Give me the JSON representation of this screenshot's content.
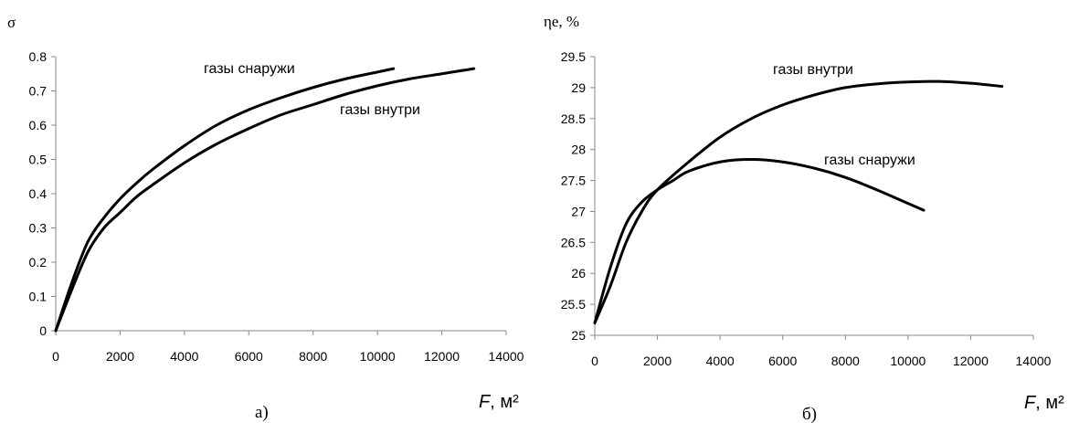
{
  "chart_data": [
    {
      "type": "line",
      "panel_label": "а)",
      "ylabel": "σ",
      "xlabel": "F, м²",
      "xlim": [
        0,
        14000
      ],
      "ylim": [
        0,
        0.8
      ],
      "x_ticks": [
        "0",
        "2000",
        "4000",
        "6000",
        "8000",
        "10000",
        "12000",
        "14000"
      ],
      "y_ticks": [
        "0",
        "0.1",
        "0.2",
        "0.3",
        "0.4",
        "0.5",
        "0.6",
        "0.7",
        "0.8"
      ],
      "grid": false,
      "series": [
        {
          "name": "газы снаружи",
          "x": [
            0,
            500,
            1000,
            1500,
            2000,
            2500,
            3000,
            4000,
            5000,
            6000,
            7000,
            8000,
            9000,
            10000,
            10500
          ],
          "y": [
            0,
            0.14,
            0.26,
            0.33,
            0.385,
            0.43,
            0.47,
            0.54,
            0.6,
            0.645,
            0.68,
            0.71,
            0.735,
            0.755,
            0.765
          ]
        },
        {
          "name": "газы внутри",
          "x": [
            0,
            500,
            1000,
            1500,
            2000,
            2500,
            3000,
            4000,
            5000,
            6000,
            7000,
            8000,
            9000,
            10000,
            11000,
            12000,
            13000
          ],
          "y": [
            0,
            0.12,
            0.23,
            0.3,
            0.345,
            0.39,
            0.425,
            0.49,
            0.545,
            0.59,
            0.63,
            0.66,
            0.69,
            0.715,
            0.735,
            0.75,
            0.765
          ]
        }
      ]
    },
    {
      "type": "line",
      "panel_label": "б)",
      "ylabel": "ηe, %",
      "xlabel": "F, м²",
      "xlim": [
        0,
        14000
      ],
      "ylim": [
        25,
        29.5
      ],
      "x_ticks": [
        "0",
        "2000",
        "4000",
        "6000",
        "8000",
        "10000",
        "12000",
        "14000"
      ],
      "y_ticks": [
        "25",
        "25.5",
        "26",
        "26.5",
        "27",
        "27.5",
        "28",
        "28.5",
        "29",
        "29.5"
      ],
      "grid": false,
      "series": [
        {
          "name": "газы внутри",
          "x": [
            0,
            500,
            1000,
            1500,
            2000,
            3000,
            4000,
            5000,
            6000,
            7000,
            8000,
            9000,
            10000,
            11000,
            12000,
            13000
          ],
          "y": [
            25.2,
            25.8,
            26.5,
            27.0,
            27.35,
            27.8,
            28.2,
            28.5,
            28.72,
            28.88,
            29.0,
            29.06,
            29.09,
            29.1,
            29.07,
            29.02
          ]
        },
        {
          "name": "газы снаружи",
          "x": [
            0,
            500,
            1000,
            1500,
            2000,
            2500,
            3000,
            4000,
            5000,
            6000,
            7000,
            8000,
            9000,
            10000,
            10500
          ],
          "y": [
            25.2,
            26.1,
            26.8,
            27.15,
            27.35,
            27.5,
            27.65,
            27.8,
            27.84,
            27.8,
            27.7,
            27.55,
            27.35,
            27.13,
            27.02
          ]
        }
      ]
    }
  ]
}
